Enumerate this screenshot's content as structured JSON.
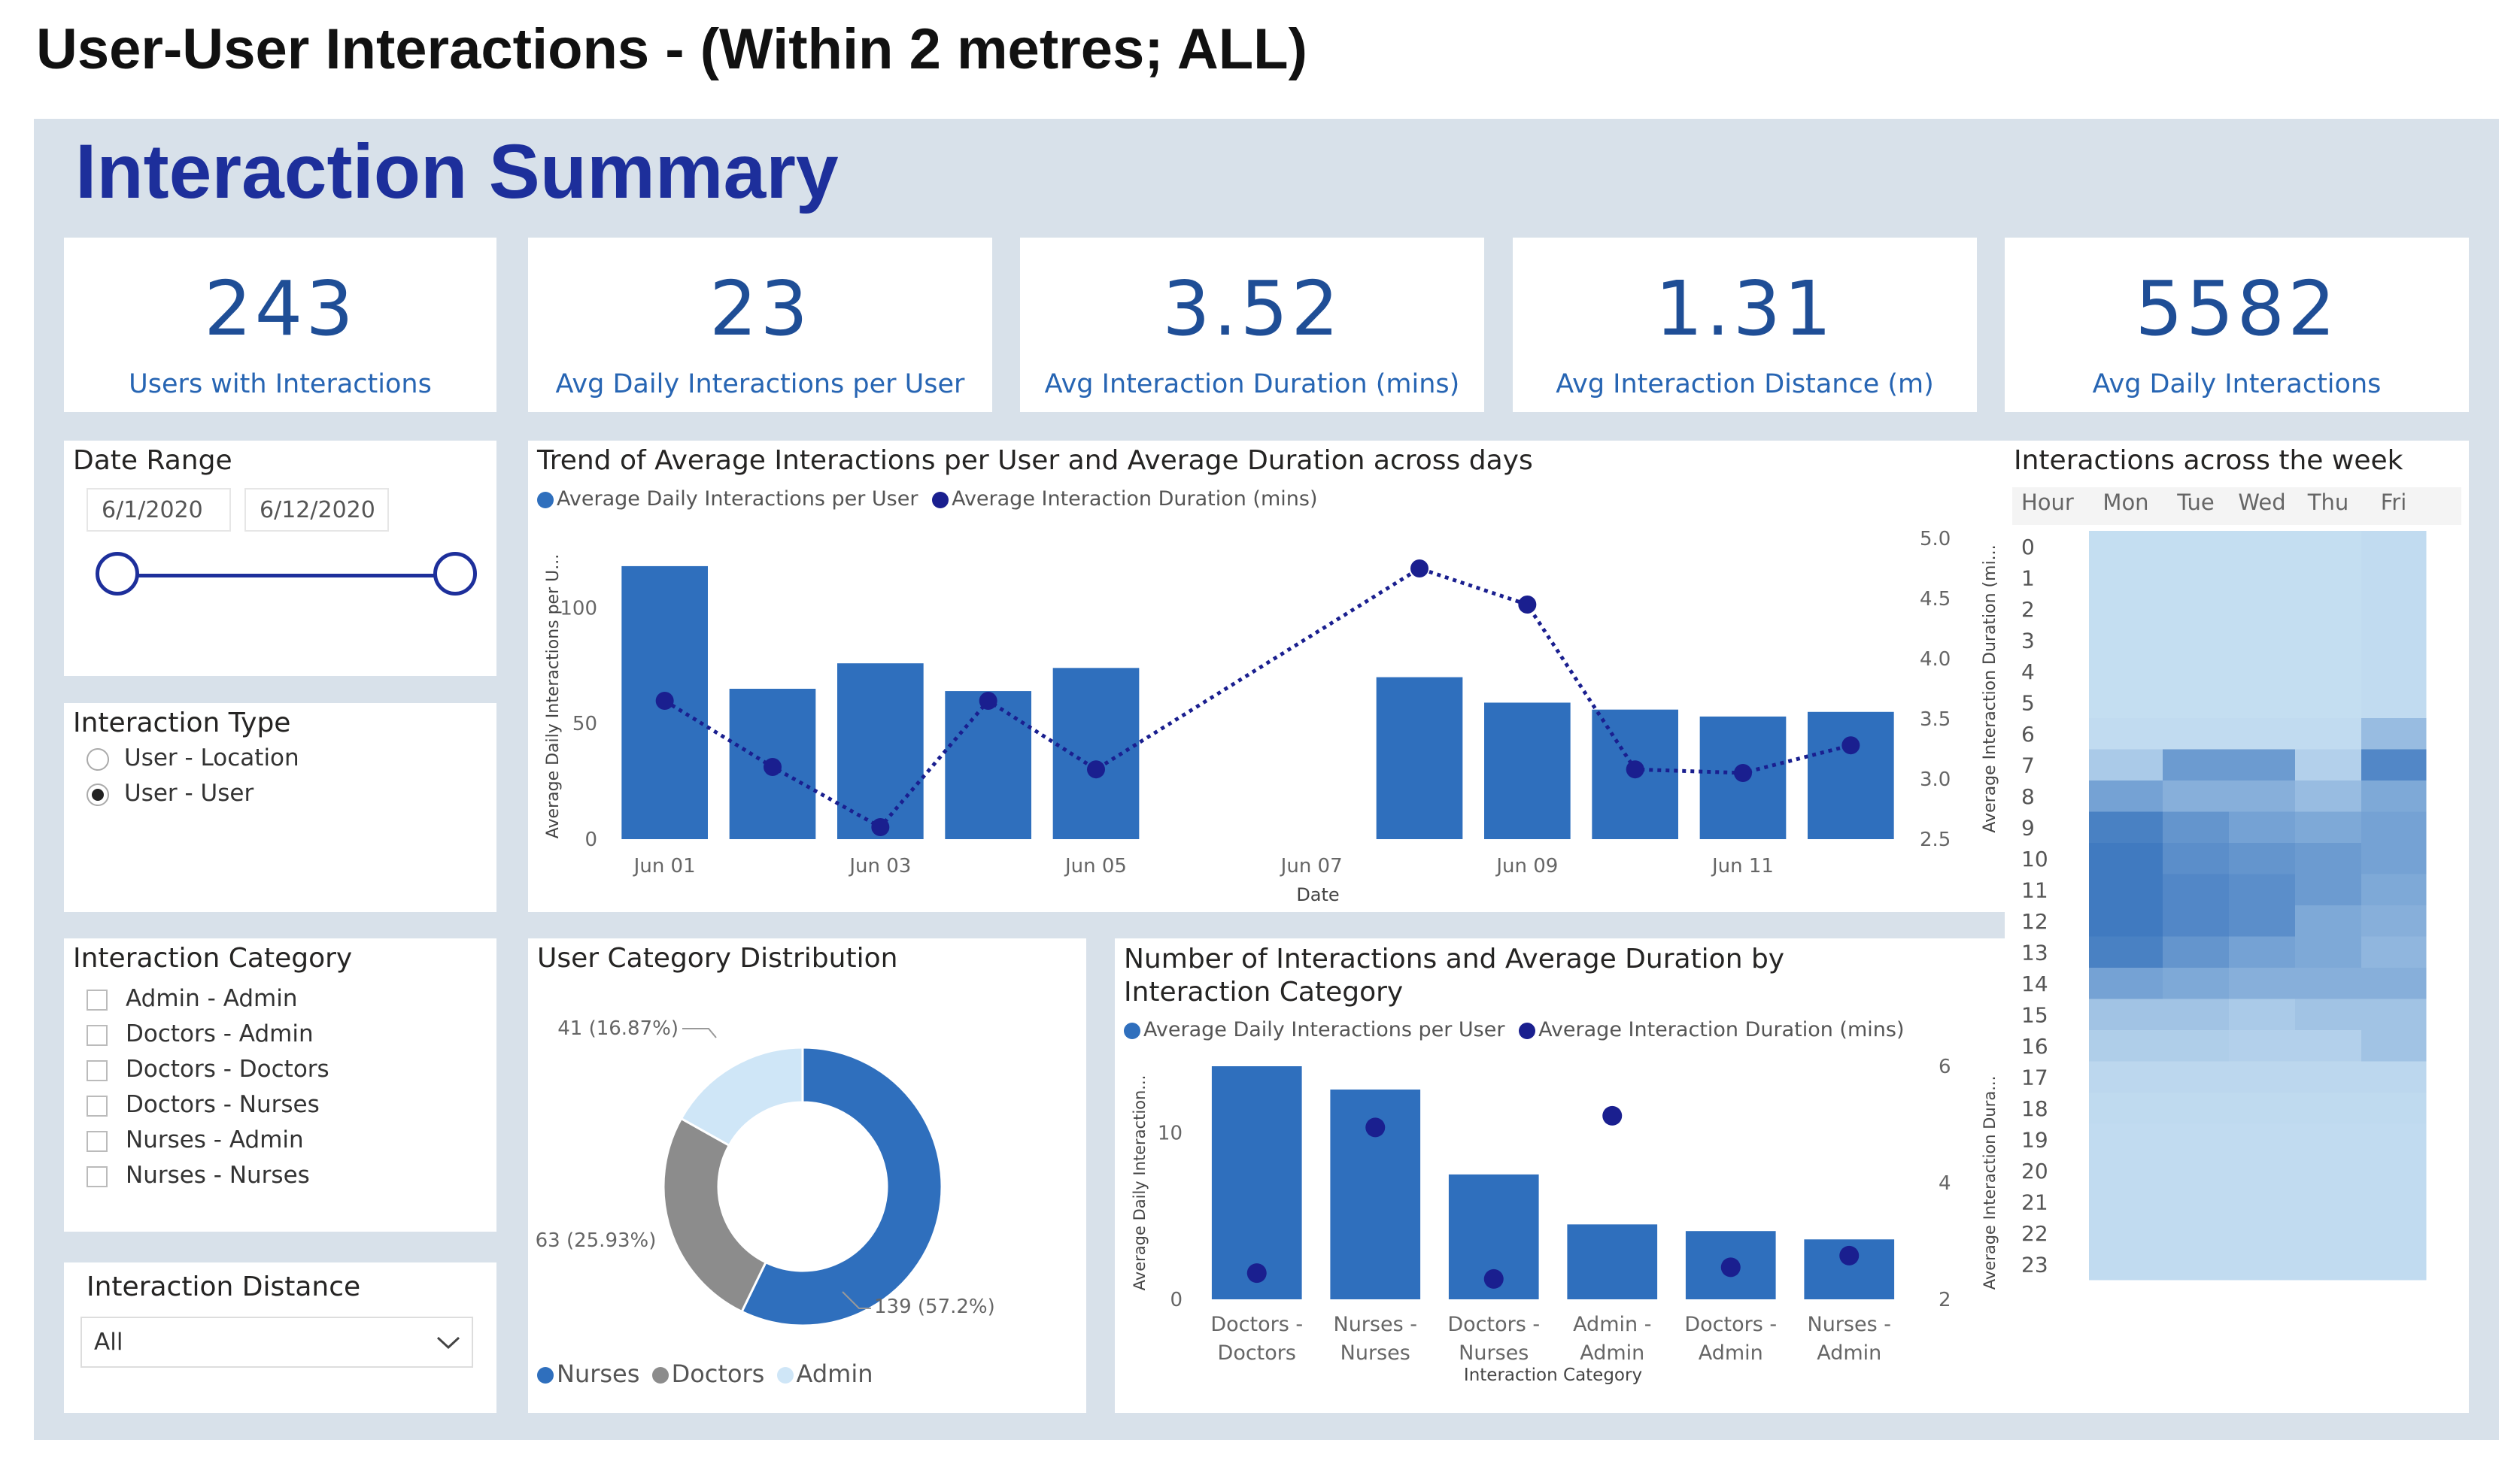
{
  "page": {
    "title": "User-User Interactions - (Within 2 metres; ALL)"
  },
  "dashboard": {
    "title": "Interaction Summary"
  },
  "kpis": [
    {
      "value": "243",
      "label": "Users with Interactions"
    },
    {
      "value": "23",
      "label": "Avg Daily Interactions per User"
    },
    {
      "value": "3.52",
      "label": "Avg Interaction Duration (mins)"
    },
    {
      "value": "1.31",
      "label": "Avg Interaction Distance (m)"
    },
    {
      "value": "5582",
      "label": "Avg Daily Interactions"
    }
  ],
  "filters": {
    "date_range": {
      "title": "Date Range",
      "start": "6/1/2020",
      "end": "6/12/2020"
    },
    "interaction_type": {
      "title": "Interaction Type",
      "options": [
        "User - Location",
        "User - User"
      ],
      "selected": "User - User"
    },
    "interaction_category": {
      "title": "Interaction Category",
      "options": [
        "Admin - Admin",
        "Doctors - Admin",
        "Doctors - Doctors",
        "Doctors - Nurses",
        "Nurses - Admin",
        "Nurses - Nurses"
      ]
    },
    "interaction_distance": {
      "title": "Interaction Distance",
      "value": "All"
    }
  },
  "colors": {
    "bar": "#2f6fbd",
    "line": "#1a1f8f",
    "nurses": "#2f6fbd",
    "doctors": "#8c8c8c",
    "admin": "#cfe6f7",
    "panel_bg": "#d8e1ea",
    "title": "#1d2f9b"
  },
  "chart_data": [
    {
      "type": "bar",
      "title": "Trend of Average Interactions per User and Average Duration across days",
      "legend": [
        "Average Daily Interactions per User",
        "Average Interaction Duration (mins)"
      ],
      "xlabel": "Date",
      "ylabel": "Average Daily Interactions per U...",
      "y2label": "Average Interaction Duration (mi...",
      "ylim": [
        0,
        130
      ],
      "y2lim": [
        2.5,
        5.0
      ],
      "yticks": [
        "0",
        "50",
        "100"
      ],
      "y2ticks": [
        "2.5",
        "3.0",
        "3.5",
        "4.0",
        "4.5",
        "5.0"
      ],
      "x_tick_labels": [
        "Jun 01",
        "Jun 03",
        "Jun 05",
        "Jun 07",
        "Jun 09",
        "Jun 11"
      ],
      "categories": [
        "Jun 01",
        "Jun 02",
        "Jun 03",
        "Jun 04",
        "Jun 05",
        "Jun 06",
        "Jun 07",
        "Jun 08",
        "Jun 09",
        "Jun 10",
        "Jun 11",
        "Jun 12"
      ],
      "series": [
        {
          "name": "Average Daily Interactions per User",
          "axis": "left",
          "kind": "bar",
          "values": [
            118,
            65,
            76,
            64,
            74,
            null,
            null,
            70,
            59,
            56,
            53,
            55
          ]
        },
        {
          "name": "Average Interaction Duration (mins)",
          "axis": "right",
          "kind": "line",
          "values": [
            3.65,
            3.1,
            2.6,
            3.65,
            3.08,
            null,
            null,
            4.75,
            4.45,
            3.08,
            3.05,
            3.28
          ]
        }
      ]
    },
    {
      "type": "pie",
      "title": "User Category Distribution",
      "categories": [
        "Nurses",
        "Doctors",
        "Admin"
      ],
      "values": [
        139,
        63,
        41
      ],
      "labels": [
        "139 (57.2%)",
        "63 (25.93%)",
        "41 (16.87%)"
      ]
    },
    {
      "type": "bar",
      "title": "Number of Interactions and Average Duration by Interaction Category",
      "legend": [
        "Average Daily Interactions per User",
        "Average Interaction Duration (mins)"
      ],
      "xlabel": "Interaction Category",
      "ylabel": "Average Daily Interaction...",
      "y2label": "Average Interaction Dura...",
      "ylim": [
        0,
        14
      ],
      "y2lim": [
        2,
        6
      ],
      "yticks": [
        "0",
        "10"
      ],
      "y2ticks": [
        "2",
        "4",
        "6"
      ],
      "categories": [
        "Doctors - Doctors",
        "Nurses - Nurses",
        "Doctors - Nurses",
        "Admin - Admin",
        "Doctors - Admin",
        "Nurses - Admin"
      ],
      "series": [
        {
          "name": "Average Daily Interactions per User",
          "axis": "left",
          "kind": "bar",
          "values": [
            14,
            12.6,
            7.5,
            4.5,
            4.1,
            3.6
          ]
        },
        {
          "name": "Average Interaction Duration (mins)",
          "axis": "right",
          "kind": "scatter",
          "values": [
            2.45,
            4.95,
            2.35,
            5.15,
            2.55,
            2.75
          ]
        }
      ]
    },
    {
      "type": "heatmap",
      "title": "Interactions across the week",
      "row_header": "Hour",
      "columns": [
        "Mon",
        "Tue",
        "Wed",
        "Thu",
        "Fri"
      ],
      "rows": [
        "0",
        "1",
        "2",
        "3",
        "4",
        "5",
        "6",
        "7",
        "8",
        "9",
        "10",
        "11",
        "12",
        "13",
        "14",
        "15",
        "16",
        "17",
        "18",
        "19",
        "20",
        "21",
        "22",
        "23"
      ],
      "values": [
        [
          0.1,
          0.1,
          0.1,
          0.1,
          0.12
        ],
        [
          0.1,
          0.1,
          0.1,
          0.1,
          0.12
        ],
        [
          0.1,
          0.1,
          0.1,
          0.1,
          0.12
        ],
        [
          0.1,
          0.1,
          0.1,
          0.1,
          0.12
        ],
        [
          0.1,
          0.1,
          0.1,
          0.1,
          0.12
        ],
        [
          0.1,
          0.1,
          0.1,
          0.1,
          0.12
        ],
        [
          0.12,
          0.12,
          0.12,
          0.12,
          0.35
        ],
        [
          0.25,
          0.6,
          0.6,
          0.2,
          0.75
        ],
        [
          0.55,
          0.45,
          0.45,
          0.35,
          0.5
        ],
        [
          0.8,
          0.65,
          0.55,
          0.5,
          0.55
        ],
        [
          0.85,
          0.7,
          0.65,
          0.6,
          0.55
        ],
        [
          0.85,
          0.75,
          0.7,
          0.6,
          0.5
        ],
        [
          0.85,
          0.75,
          0.7,
          0.5,
          0.45
        ],
        [
          0.8,
          0.65,
          0.55,
          0.5,
          0.4
        ],
        [
          0.55,
          0.5,
          0.45,
          0.45,
          0.45
        ],
        [
          0.3,
          0.3,
          0.25,
          0.3,
          0.3
        ],
        [
          0.22,
          0.22,
          0.2,
          0.2,
          0.3
        ],
        [
          0.15,
          0.15,
          0.15,
          0.15,
          0.15
        ],
        [
          0.13,
          0.13,
          0.13,
          0.13,
          0.13
        ],
        [
          0.12,
          0.12,
          0.12,
          0.12,
          0.12
        ],
        [
          0.12,
          0.12,
          0.12,
          0.12,
          0.12
        ],
        [
          0.12,
          0.12,
          0.12,
          0.12,
          0.12
        ],
        [
          0.12,
          0.12,
          0.12,
          0.12,
          0.12
        ],
        [
          0.12,
          0.12,
          0.12,
          0.12,
          0.12
        ]
      ]
    }
  ]
}
